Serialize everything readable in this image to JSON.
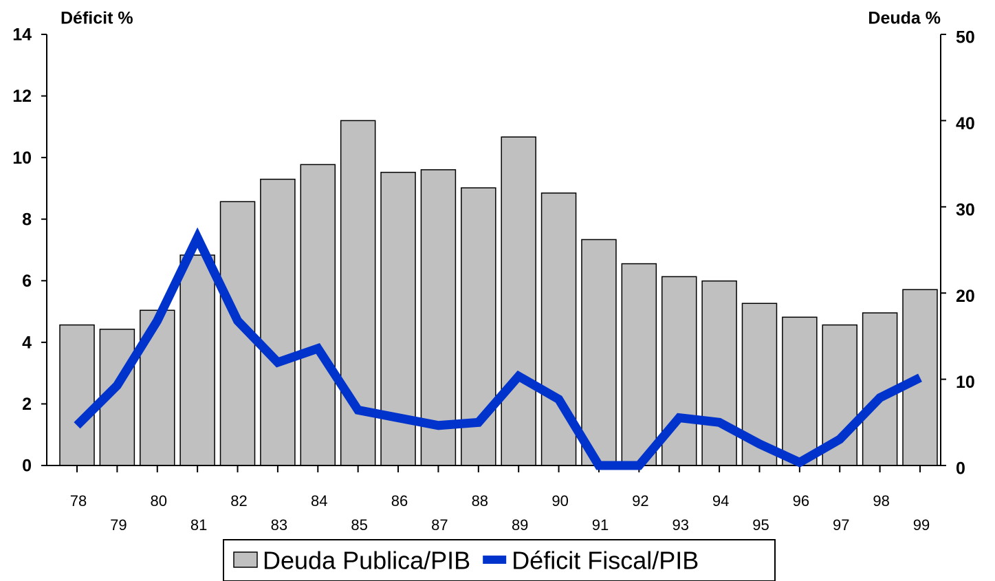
{
  "chart_data": {
    "type": "bar",
    "y_label": "Déficit %",
    "y2_label": "Deuda %",
    "categories": [
      "78",
      "79",
      "80",
      "81",
      "82",
      "83",
      "84",
      "85",
      "86",
      "87",
      "88",
      "89",
      "90",
      "91",
      "92",
      "93",
      "94",
      "95",
      "96",
      "97",
      "98",
      "99"
    ],
    "series": [
      {
        "name": "Deuda Publica/PIB",
        "type": "bar",
        "axis": "y2",
        "color": "#c0c0c0",
        "values": [
          16.3,
          15.8,
          18.0,
          24.4,
          30.6,
          33.2,
          34.9,
          40.0,
          34.0,
          34.3,
          32.2,
          38.1,
          31.6,
          26.2,
          23.4,
          21.9,
          21.4,
          18.8,
          17.2,
          16.3,
          17.7,
          20.4
        ]
      },
      {
        "name": "Déficit Fiscal/PIB",
        "type": "line",
        "color": "#0033cc",
        "values": [
          1.3,
          2.6,
          4.7,
          7.4,
          4.7,
          3.35,
          3.8,
          1.8,
          1.55,
          1.3,
          1.4,
          2.9,
          2.15,
          0,
          0,
          1.55,
          1.4,
          0.7,
          0.1,
          0.85,
          2.2,
          2.85
        ]
      }
    ],
    "ylim": [
      0,
      14
    ],
    "yticks": [
      0,
      2,
      4,
      6,
      8,
      10,
      12,
      14
    ],
    "y2lim": [
      0,
      50
    ],
    "y2ticks": [
      0,
      10,
      20,
      30,
      40,
      50
    ],
    "legend": "bottom"
  }
}
